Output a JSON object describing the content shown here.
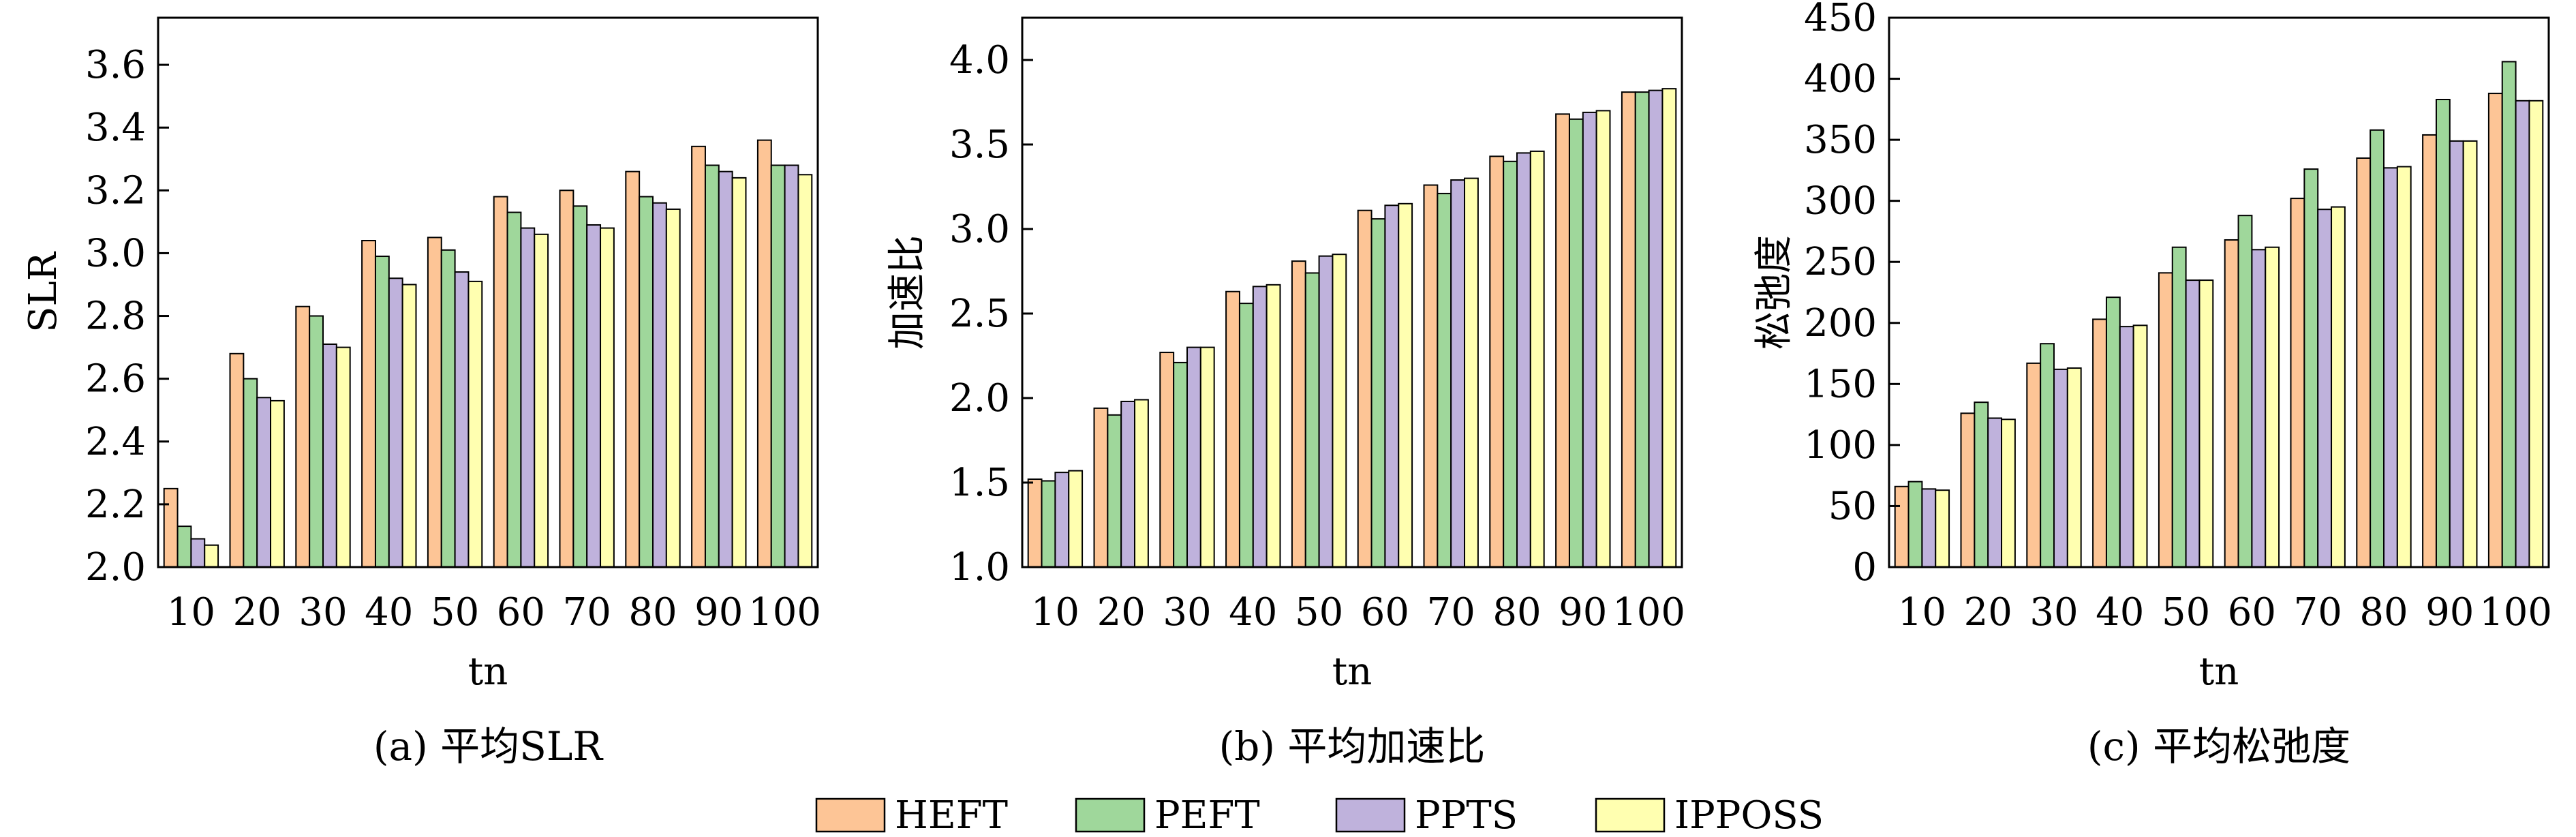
{
  "legend": {
    "series_names": [
      "HEFT",
      "PEFT",
      "PPTS",
      "IPPOSS"
    ],
    "colors": [
      "#fdc596",
      "#9fd79b",
      "#bfb2dc",
      "#ffffb0"
    ]
  },
  "chart_data": [
    {
      "type": "bar",
      "caption": "(a) 平均SLR",
      "xlabel": "tn",
      "ylabel": "SLR",
      "ylim": [
        2.0,
        3.75
      ],
      "yticks": [
        2.0,
        2.2,
        2.4,
        2.6,
        2.8,
        3.0,
        3.2,
        3.4,
        3.6
      ],
      "ytick_labels": [
        "2.0",
        "2.2",
        "2.4",
        "2.6",
        "2.8",
        "3.0",
        "3.2",
        "3.4",
        "3.6"
      ],
      "categories": [
        "10",
        "20",
        "30",
        "40",
        "50",
        "60",
        "70",
        "80",
        "90",
        "100"
      ],
      "series": [
        {
          "name": "HEFT",
          "values": [
            2.25,
            2.68,
            2.83,
            3.04,
            3.05,
            3.18,
            3.2,
            3.26,
            3.34,
            3.36
          ]
        },
        {
          "name": "PEFT",
          "values": [
            2.13,
            2.6,
            2.8,
            2.99,
            3.01,
            3.13,
            3.15,
            3.18,
            3.28,
            3.28
          ]
        },
        {
          "name": "PPTS",
          "values": [
            2.09,
            2.54,
            2.71,
            2.92,
            2.94,
            3.08,
            3.09,
            3.16,
            3.26,
            3.28
          ]
        },
        {
          "name": "IPPOSS",
          "values": [
            2.07,
            2.53,
            2.7,
            2.9,
            2.91,
            3.06,
            3.08,
            3.14,
            3.24,
            3.25
          ]
        }
      ]
    },
    {
      "type": "bar",
      "caption": "(b) 平均加速比",
      "xlabel": "tn",
      "ylabel": "加速比",
      "ylim": [
        1.0,
        4.25
      ],
      "yticks": [
        1.0,
        1.5,
        2.0,
        2.5,
        3.0,
        3.5,
        4.0
      ],
      "ytick_labels": [
        "1.0",
        "1.5",
        "2.0",
        "2.5",
        "3.0",
        "3.5",
        "4.0"
      ],
      "categories": [
        "10",
        "20",
        "30",
        "40",
        "50",
        "60",
        "70",
        "80",
        "90",
        "100"
      ],
      "series": [
        {
          "name": "HEFT",
          "values": [
            1.52,
            1.94,
            2.27,
            2.63,
            2.81,
            3.11,
            3.26,
            3.43,
            3.68,
            3.81
          ]
        },
        {
          "name": "PEFT",
          "values": [
            1.51,
            1.9,
            2.21,
            2.56,
            2.74,
            3.06,
            3.21,
            3.4,
            3.65,
            3.81
          ]
        },
        {
          "name": "PPTS",
          "values": [
            1.56,
            1.98,
            2.3,
            2.66,
            2.84,
            3.14,
            3.29,
            3.45,
            3.69,
            3.82
          ]
        },
        {
          "name": "IPPOSS",
          "values": [
            1.57,
            1.99,
            2.3,
            2.67,
            2.85,
            3.15,
            3.3,
            3.46,
            3.7,
            3.83
          ]
        }
      ]
    },
    {
      "type": "bar",
      "caption": "(c) 平均松弛度",
      "xlabel": "tn",
      "ylabel": "松弛度",
      "ylim": [
        0,
        450
      ],
      "yticks": [
        0,
        50,
        100,
        150,
        200,
        250,
        300,
        350,
        400,
        450
      ],
      "ytick_labels": [
        "0",
        "50",
        "100",
        "150",
        "200",
        "250",
        "300",
        "350",
        "400",
        "450"
      ],
      "categories": [
        "10",
        "20",
        "30",
        "40",
        "50",
        "60",
        "70",
        "80",
        "90",
        "100"
      ],
      "series": [
        {
          "name": "HEFT",
          "values": [
            66,
            126,
            167,
            203,
            241,
            268,
            302,
            335,
            354,
            388
          ]
        },
        {
          "name": "PEFT",
          "values": [
            70,
            135,
            183,
            221,
            262,
            288,
            326,
            358,
            383,
            414
          ]
        },
        {
          "name": "PPTS",
          "values": [
            64,
            122,
            162,
            197,
            235,
            260,
            293,
            327,
            349,
            382
          ]
        },
        {
          "name": "IPPOSS",
          "values": [
            63,
            121,
            163,
            198,
            235,
            262,
            295,
            328,
            349,
            382
          ]
        }
      ]
    }
  ]
}
